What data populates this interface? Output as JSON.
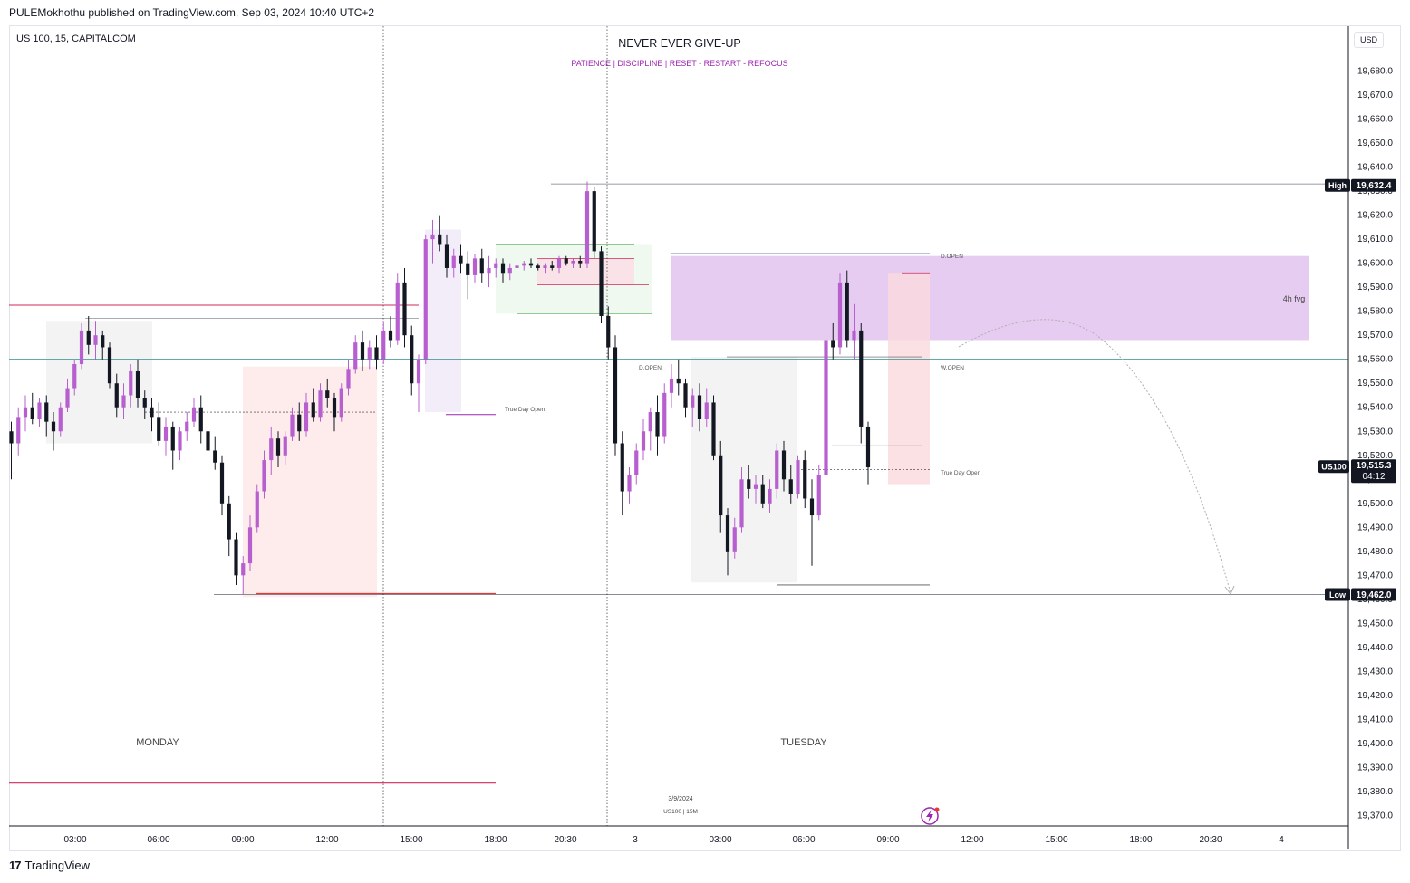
{
  "header": {
    "publisher": "PULEMokhothu published on TradingView.com, Sep 03, 2024 10:40 UTC+2"
  },
  "footer": {
    "brand": "TradingView"
  },
  "currency_button": "USD",
  "colors": {
    "bull": "#b85fd0",
    "bear": "#131722",
    "fvg": "#e2c6ee",
    "accent": "#9c27b0",
    "price_line_teal": "#2f8f8f",
    "red_line": "#d02a5b"
  },
  "chart_data": {
    "type": "candlestick",
    "symbol": "US 100, 15, CAPITALCOM",
    "title": "NEVER EVER GIVE-UP",
    "subtitle": "PATIENCE  |  DISCIPLINE  |  RESET - RESTART - REFOCUS",
    "ylim": [
      19360,
      19690
    ],
    "y_ticks": [
      19370,
      19380,
      19390,
      19400,
      19410,
      19420,
      19430,
      19440,
      19450,
      19460,
      19470,
      19480,
      19490,
      19500,
      19510,
      19520,
      19530,
      19540,
      19550,
      19560,
      19570,
      19580,
      19590,
      19600,
      19610,
      19620,
      19630,
      19640,
      19650,
      19660,
      19670,
      19680
    ],
    "y_tick_labels": [
      "19,370.0",
      "19,380.0",
      "19,390.0",
      "19,400.0",
      "19,410.0",
      "19,420.0",
      "19,430.0",
      "19,440.0",
      "19,450.0",
      "19,460.0",
      "19,470.0",
      "19,480.0",
      "19,490.0",
      "19,500.0",
      "19,510.0",
      "19,520.0",
      "19,530.0",
      "19,540.0",
      "19,550.0",
      "19,560.0",
      "19,570.0",
      "19,580.0",
      "19,590.0",
      "19,600.0",
      "19,610.0",
      "19,620.0",
      "19,630.0",
      "19,640.0",
      "19,650.0",
      "19,660.0",
      "19,670.0",
      "19,680.0"
    ],
    "x_ticks": [
      "03:00",
      "06:00",
      "09:00",
      "12:00",
      "15:00",
      "18:00",
      "20:30",
      "3",
      "03:00",
      "06:00",
      "09:00",
      "12:00",
      "15:00",
      "18:00",
      "20:30",
      "4"
    ],
    "high": {
      "label": "High",
      "value": 19632.4,
      "text": "19,632.4"
    },
    "low": {
      "label": "Low",
      "value": 19462.0,
      "text": "19,462.0"
    },
    "last": {
      "label": "US100",
      "value": 19515.3,
      "text": "19,515.3",
      "countdown": "04:12"
    },
    "annotations": {
      "monday": "MONDAY",
      "tuesday": "TUESDAY",
      "fvg": "4h fvg",
      "d_open": "D.OPEN",
      "w_open": "W.OPEN",
      "true_day_open": "True Day Open",
      "date_stamp": "3/9/2024",
      "symbol_stamp": "US100 | 15M"
    },
    "candles": [
      [
        19530,
        19534,
        19510,
        19525
      ],
      [
        19525,
        19540,
        19520,
        19536
      ],
      [
        19536,
        19545,
        19530,
        19540
      ],
      [
        19540,
        19546,
        19533,
        19535
      ],
      [
        19535,
        19544,
        19532,
        19542
      ],
      [
        19542,
        19545,
        19528,
        19534
      ],
      [
        19534,
        19538,
        19522,
        19530
      ],
      [
        19530,
        19542,
        19528,
        19540
      ],
      [
        19540,
        19552,
        19538,
        19548
      ],
      [
        19548,
        19560,
        19545,
        19558
      ],
      [
        19558,
        19575,
        19556,
        19572
      ],
      [
        19572,
        19578,
        19562,
        19566
      ],
      [
        19566,
        19576,
        19560,
        19570
      ],
      [
        19570,
        19572,
        19560,
        19565
      ],
      [
        19565,
        19567,
        19548,
        19550
      ],
      [
        19550,
        19554,
        19536,
        19540
      ],
      [
        19540,
        19550,
        19535,
        19545
      ],
      [
        19545,
        19558,
        19540,
        19555
      ],
      [
        19555,
        19560,
        19540,
        19544
      ],
      [
        19544,
        19547,
        19535,
        19540
      ],
      [
        19540,
        19544,
        19530,
        19536
      ],
      [
        19536,
        19542,
        19524,
        19526
      ],
      [
        19526,
        19536,
        19520,
        19532
      ],
      [
        19532,
        19534,
        19514,
        19522
      ],
      [
        19522,
        19532,
        19518,
        19530
      ],
      [
        19530,
        19538,
        19526,
        19534
      ],
      [
        19534,
        19544,
        19532,
        19540
      ],
      [
        19540,
        19545,
        19525,
        19530
      ],
      [
        19530,
        19533,
        19515,
        19522
      ],
      [
        19522,
        19528,
        19514,
        19517
      ],
      [
        19517,
        19520,
        19495,
        19500
      ],
      [
        19500,
        19503,
        19478,
        19485
      ],
      [
        19485,
        19488,
        19466,
        19470
      ],
      [
        19470,
        19478,
        19462,
        19475
      ],
      [
        19475,
        19495,
        19472,
        19490
      ],
      [
        19490,
        19508,
        19488,
        19505
      ],
      [
        19505,
        19522,
        19502,
        19518
      ],
      [
        19518,
        19532,
        19512,
        19527
      ],
      [
        19527,
        19530,
        19515,
        19520
      ],
      [
        19520,
        19530,
        19516,
        19528
      ],
      [
        19528,
        19540,
        19526,
        19537
      ],
      [
        19537,
        19542,
        19526,
        19530
      ],
      [
        19530,
        19546,
        19528,
        19542
      ],
      [
        19542,
        19548,
        19534,
        19536
      ],
      [
        19536,
        19550,
        19534,
        19547
      ],
      [
        19547,
        19552,
        19540,
        19544
      ],
      [
        19544,
        19546,
        19530,
        19536
      ],
      [
        19536,
        19550,
        19534,
        19548
      ],
      [
        19548,
        19560,
        19545,
        19556
      ],
      [
        19556,
        19570,
        19554,
        19567
      ],
      [
        19567,
        19572,
        19555,
        19560
      ],
      [
        19560,
        19568,
        19556,
        19565
      ],
      [
        19565,
        19570,
        19556,
        19560
      ],
      [
        19560,
        19576,
        19558,
        19572
      ],
      [
        19572,
        19578,
        19565,
        19568
      ],
      [
        19568,
        19596,
        19566,
        19592
      ],
      [
        19592,
        19598,
        19565,
        19570
      ],
      [
        19570,
        19574,
        19545,
        19550
      ],
      [
        19550,
        19562,
        19538,
        19560
      ],
      [
        19560,
        19612,
        19558,
        19610
      ],
      [
        19610,
        19618,
        19600,
        19612
      ],
      [
        19612,
        19620,
        19605,
        19608
      ],
      [
        19608,
        19612,
        19594,
        19598
      ],
      [
        19598,
        19606,
        19594,
        19603
      ],
      [
        19603,
        19608,
        19596,
        19600
      ],
      [
        19600,
        19605,
        19585,
        19595
      ],
      [
        19595,
        19604,
        19592,
        19602
      ],
      [
        19602,
        19606,
        19592,
        19596
      ],
      [
        19596,
        19603,
        19590,
        19598
      ],
      [
        19598,
        19602,
        19594,
        19600
      ],
      [
        19600,
        19602,
        19592,
        19596
      ],
      [
        19596,
        19600,
        19593,
        19598
      ],
      [
        19598,
        19600,
        19595,
        19599
      ],
      [
        19599,
        19601,
        19597,
        19600
      ],
      [
        19600,
        19602,
        19598,
        19599
      ],
      [
        19599,
        19600,
        19597,
        19598
      ],
      [
        19598,
        19600,
        19596,
        19599
      ],
      [
        19599,
        19601,
        19597,
        19598
      ],
      [
        19598,
        19603,
        19596,
        19602
      ],
      [
        19602,
        19603,
        19599,
        19600
      ],
      [
        19600,
        19602,
        19598,
        19601
      ],
      [
        19601,
        19603,
        19598,
        19600
      ],
      [
        19600,
        19634,
        19598,
        19630
      ],
      [
        19630,
        19632,
        19602,
        19605
      ],
      [
        19605,
        19607,
        19575,
        19578
      ],
      [
        19578,
        19582,
        19560,
        19565
      ],
      [
        19565,
        19570,
        19520,
        19525
      ],
      [
        19525,
        19530,
        19495,
        19505
      ],
      [
        19505,
        19515,
        19500,
        19512
      ],
      [
        19512,
        19525,
        19508,
        19522
      ],
      [
        19522,
        19535,
        19518,
        19530
      ],
      [
        19530,
        19540,
        19522,
        19538
      ],
      [
        19538,
        19545,
        19520,
        19528
      ],
      [
        19528,
        19550,
        19525,
        19546
      ],
      [
        19546,
        19558,
        19540,
        19552
      ],
      [
        19552,
        19560,
        19545,
        19550
      ],
      [
        19550,
        19552,
        19536,
        19540
      ],
      [
        19540,
        19548,
        19532,
        19545
      ],
      [
        19545,
        19550,
        19530,
        19535
      ],
      [
        19535,
        19548,
        19532,
        19542
      ],
      [
        19542,
        19545,
        19518,
        19520
      ],
      [
        19520,
        19526,
        19488,
        19495
      ],
      [
        19495,
        19498,
        19470,
        19480
      ],
      [
        19480,
        19494,
        19477,
        19490
      ],
      [
        19490,
        19515,
        19488,
        19510
      ],
      [
        19510,
        19516,
        19502,
        19506
      ],
      [
        19506,
        19512,
        19500,
        19508
      ],
      [
        19508,
        19512,
        19498,
        19500
      ],
      [
        19500,
        19510,
        19496,
        19506
      ],
      [
        19506,
        19525,
        19502,
        19522
      ],
      [
        19522,
        19526,
        19505,
        19510
      ],
      [
        19510,
        19516,
        19500,
        19504
      ],
      [
        19504,
        19520,
        19502,
        19518
      ],
      [
        19518,
        19522,
        19498,
        19502
      ],
      [
        19502,
        19510,
        19474,
        19495
      ],
      [
        19495,
        19516,
        19493,
        19512
      ],
      [
        19512,
        19572,
        19510,
        19568
      ],
      [
        19568,
        19575,
        19560,
        19565
      ],
      [
        19565,
        19596,
        19562,
        19592
      ],
      [
        19592,
        19597,
        19565,
        19568
      ],
      [
        19568,
        19583,
        19560,
        19572
      ],
      [
        19572,
        19575,
        19525,
        19532
      ],
      [
        19532,
        19534,
        19508,
        19515
      ]
    ]
  }
}
